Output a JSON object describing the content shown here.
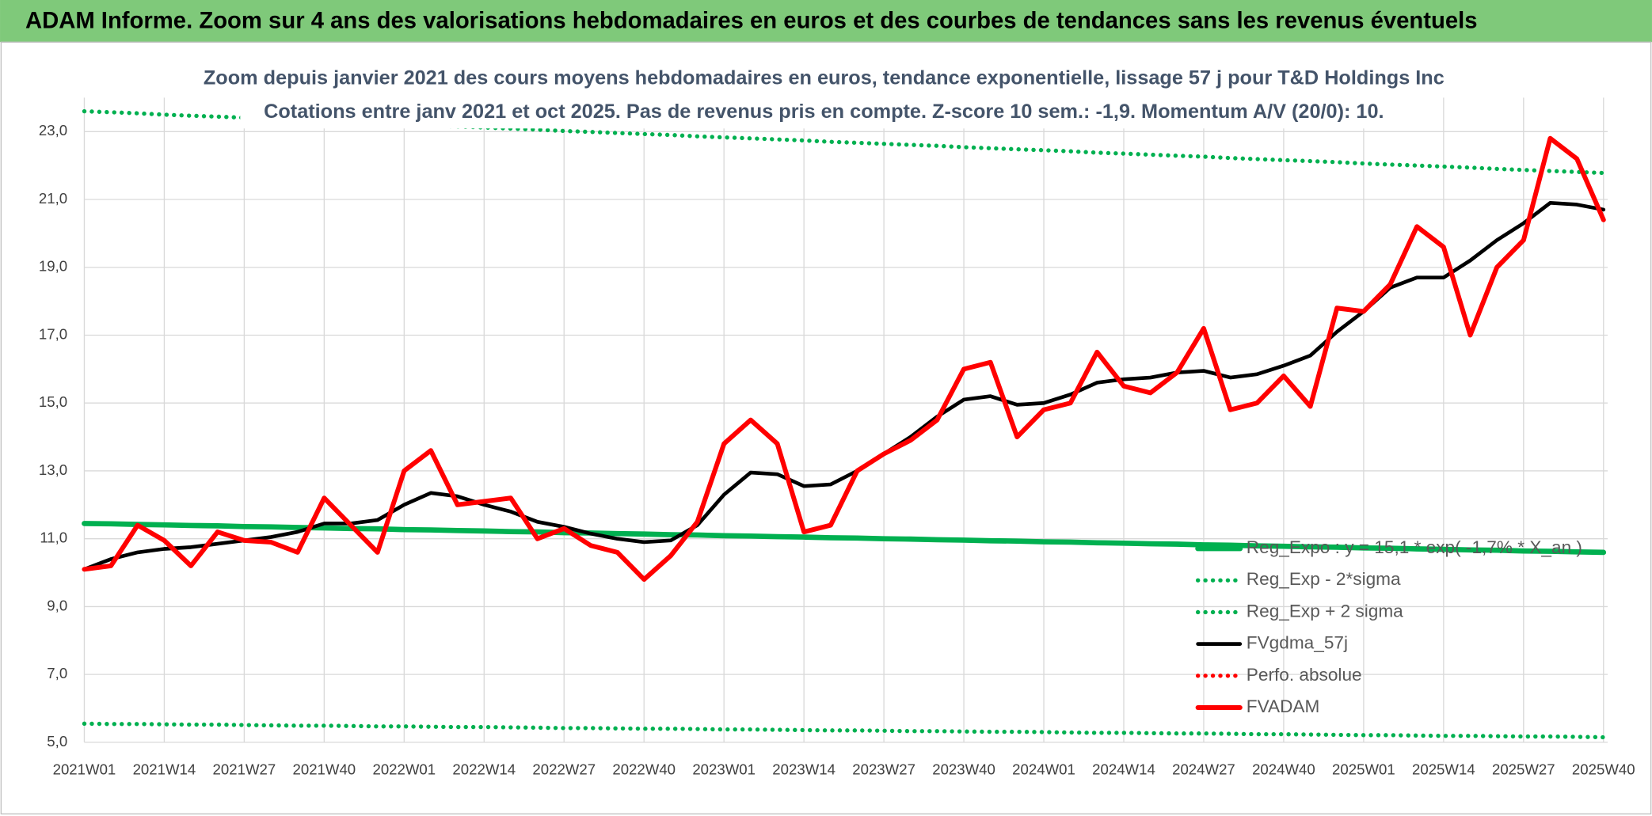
{
  "header": "ADAM Informe. Zoom sur 4 ans des valorisations hebdomadaires en euros et des courbes de tendances sans les revenus éventuels",
  "chart_data": {
    "type": "line",
    "title": "Zoom depuis janvier 2021 des cours moyens hebdomadaires en euros, tendance exponentielle, lissage 57 j pour T&D Holdings Inc",
    "subtitle": "Cotations entre janv 2021 et oct 2025. Pas de revenus pris en compte. Z-score 10 sem.: -1,9. Momentum A/V (20/0): 10.",
    "categories": [
      "2021W01",
      null,
      null,
      "2021W14",
      null,
      null,
      "2021W27",
      null,
      null,
      "2021W40",
      null,
      null,
      "2022W01",
      null,
      null,
      "2022W14",
      null,
      null,
      "2022W27",
      null,
      null,
      "2022W40",
      null,
      null,
      "2023W01",
      null,
      null,
      "2023W14",
      null,
      null,
      "2023W27",
      null,
      null,
      "2023W40",
      null,
      null,
      "2024W01",
      null,
      null,
      "2024W14",
      null,
      null,
      "2024W27",
      null,
      null,
      "2024W40",
      null,
      null,
      "2025W01",
      null,
      null,
      "2025W14",
      null,
      null,
      "2025W27",
      null,
      null,
      "2025W40"
    ],
    "ylim": [
      5,
      24
    ],
    "yticks": [
      {
        "value": 5,
        "label": "5,0"
      },
      {
        "value": 7,
        "label": "7,0"
      },
      {
        "value": 9,
        "label": "9,0"
      },
      {
        "value": 11,
        "label": "11,0"
      },
      {
        "value": 13,
        "label": "13,0"
      },
      {
        "value": 15,
        "label": "15,0"
      },
      {
        "value": 17,
        "label": "17,0"
      },
      {
        "value": 19,
        "label": "19,0"
      },
      {
        "value": 21,
        "label": "21,0"
      },
      {
        "value": 23,
        "label": "23,0"
      }
    ],
    "grid": true,
    "legend": "right",
    "series": [
      {
        "name": "Reg_Expo : y = 15,1 * exp( -1,7% * X_an )",
        "color": "#00b050",
        "style": "solid",
        "values": [
          11.45,
          11.44,
          11.42,
          11.41,
          11.39,
          11.38,
          11.36,
          11.35,
          11.33,
          11.32,
          11.3,
          11.29,
          11.27,
          11.26,
          11.24,
          11.23,
          11.21,
          11.2,
          11.18,
          11.17,
          11.15,
          11.14,
          11.12,
          11.11,
          11.09,
          11.08,
          11.06,
          11.05,
          11.03,
          11.02,
          11.0,
          10.99,
          10.97,
          10.96,
          10.94,
          10.93,
          10.91,
          10.9,
          10.88,
          10.87,
          10.85,
          10.84,
          10.82,
          10.81,
          10.79,
          10.78,
          10.76,
          10.75,
          10.73,
          10.72,
          10.7,
          10.69,
          10.67,
          10.66,
          10.64,
          10.63,
          10.61,
          10.6
        ]
      },
      {
        "name": "Reg_Exp - 2*sigma",
        "color": "#00b050",
        "style": "dotted",
        "values": [
          5.55,
          5.54,
          5.54,
          5.53,
          5.52,
          5.52,
          5.51,
          5.5,
          5.49,
          5.49,
          5.48,
          5.47,
          5.47,
          5.46,
          5.45,
          5.45,
          5.44,
          5.43,
          5.42,
          5.42,
          5.41,
          5.4,
          5.4,
          5.39,
          5.38,
          5.38,
          5.37,
          5.36,
          5.35,
          5.35,
          5.34,
          5.33,
          5.33,
          5.32,
          5.31,
          5.31,
          5.3,
          5.29,
          5.28,
          5.28,
          5.27,
          5.26,
          5.26,
          5.25,
          5.24,
          5.24,
          5.23,
          5.22,
          5.21,
          5.21,
          5.2,
          5.19,
          5.19,
          5.18,
          5.17,
          5.17,
          5.16,
          5.15
        ]
      },
      {
        "name": "Reg_Exp + 2 sigma",
        "color": "#00b050",
        "style": "dotted",
        "values": [
          23.6,
          23.57,
          23.54,
          23.5,
          23.47,
          23.44,
          23.41,
          23.38,
          23.34,
          23.31,
          23.28,
          23.25,
          23.22,
          23.18,
          23.15,
          23.12,
          23.09,
          23.06,
          23.02,
          22.99,
          22.96,
          22.93,
          22.9,
          22.86,
          22.83,
          22.8,
          22.77,
          22.74,
          22.7,
          22.67,
          22.64,
          22.61,
          22.58,
          22.54,
          22.51,
          22.48,
          22.45,
          22.42,
          22.38,
          22.35,
          22.32,
          22.29,
          22.26,
          22.22,
          22.19,
          22.16,
          22.13,
          22.1,
          22.06,
          22.03,
          22.0,
          21.97,
          21.94,
          21.9,
          21.87,
          21.84,
          21.81,
          21.78
        ]
      },
      {
        "name": "FVgdma_57j",
        "color": "#000000",
        "style": "solid",
        "values": [
          10.1,
          10.4,
          10.6,
          10.7,
          10.75,
          10.85,
          10.95,
          11.05,
          11.2,
          11.45,
          11.45,
          11.55,
          12.0,
          12.35,
          12.25,
          12.0,
          11.8,
          11.5,
          11.35,
          11.15,
          11.0,
          10.9,
          10.95,
          11.4,
          12.3,
          12.95,
          12.9,
          12.55,
          12.6,
          13.0,
          13.5,
          14.0,
          14.6,
          15.1,
          15.2,
          14.95,
          15.0,
          15.25,
          15.6,
          15.7,
          15.75,
          15.9,
          15.95,
          15.75,
          15.85,
          16.1,
          16.4,
          17.1,
          17.7,
          18.4,
          18.7,
          18.7,
          19.2,
          19.8,
          20.3,
          20.9,
          20.85,
          20.7
        ]
      },
      {
        "name": "Perfo. absolue",
        "color": "#ff0000",
        "style": "dotted"
      },
      {
        "name": "FVADAM",
        "color": "#ff0000",
        "style": "solid",
        "values": [
          10.1,
          10.2,
          11.4,
          10.95,
          10.2,
          11.2,
          10.95,
          10.9,
          10.6,
          12.2,
          11.4,
          10.6,
          13.0,
          13.6,
          12.0,
          12.1,
          12.2,
          11.0,
          11.3,
          10.8,
          10.6,
          9.8,
          10.5,
          11.5,
          13.8,
          14.5,
          13.8,
          11.2,
          11.4,
          13.0,
          13.5,
          13.9,
          14.5,
          16.0,
          16.2,
          14.0,
          14.8,
          15.0,
          16.5,
          15.5,
          15.3,
          15.9,
          17.2,
          14.8,
          15.0,
          15.8,
          14.9,
          17.8,
          17.7,
          18.5,
          20.2,
          19.6,
          17.0,
          19.0,
          19.8,
          22.8,
          22.2,
          20.4
        ]
      }
    ]
  }
}
